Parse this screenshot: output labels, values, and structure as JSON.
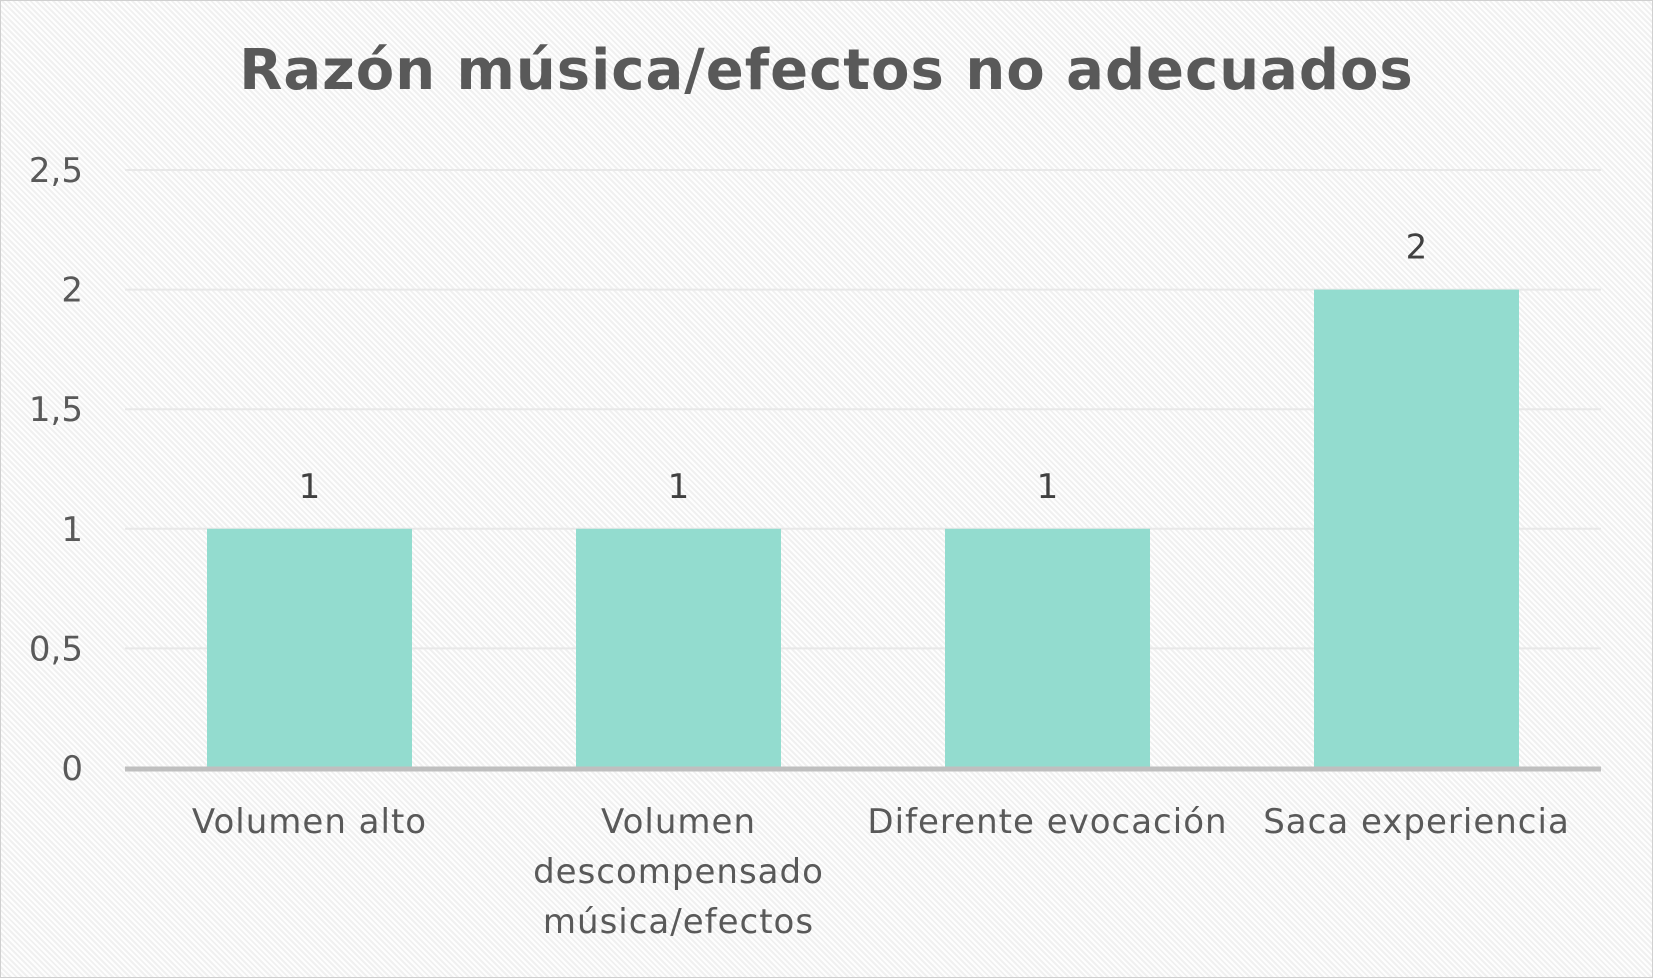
{
  "chart_data": {
    "type": "bar",
    "title": "Razón música/efectos no adecuados",
    "categories": [
      [
        "Volumen alto"
      ],
      [
        "Volumen",
        "descompensado",
        "música/efectos"
      ],
      [
        "Diferente evocación"
      ],
      [
        "Saca experiencia"
      ]
    ],
    "values": [
      1,
      1,
      1,
      2
    ],
    "data_labels": [
      "1",
      "1",
      "1",
      "2"
    ],
    "ylim": [
      0,
      2.5
    ],
    "yticks": [
      0,
      0.5,
      1,
      1.5,
      2,
      2.5
    ],
    "ytick_labels": [
      "0",
      "0,5",
      "1",
      "1,5",
      "2",
      "2,5"
    ],
    "xlabel": "",
    "ylabel": "",
    "grid": true,
    "legend": "none",
    "colors": {
      "bar": "#93dccf",
      "gridline": "#e8e8e8",
      "axis": "#bfbfbf",
      "text": "#595959"
    }
  }
}
